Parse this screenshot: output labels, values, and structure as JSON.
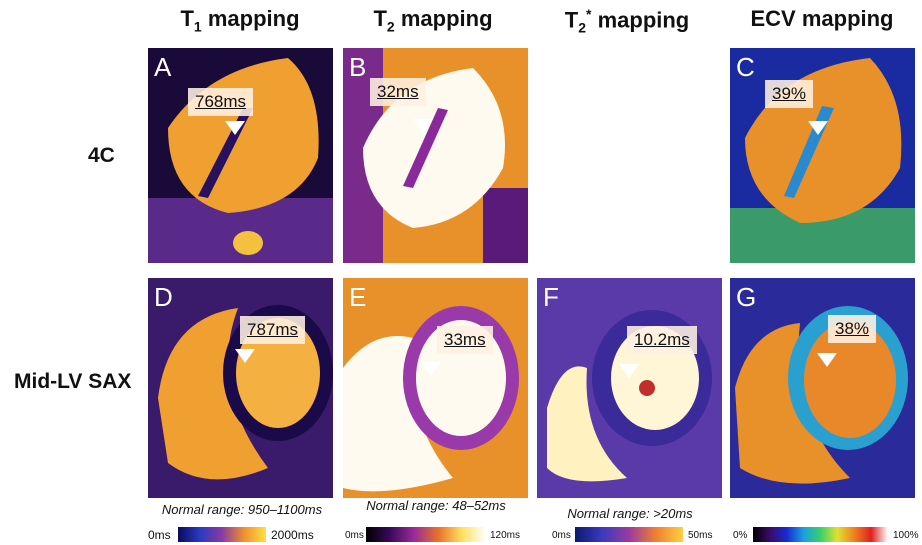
{
  "columns": [
    {
      "main": "T",
      "sub": "1",
      "tail": "mapping"
    },
    {
      "main": "T",
      "sub": "2",
      "tail": "mapping"
    },
    {
      "main": "T",
      "sub": "2",
      "sup": "*",
      "tail": "mapping"
    },
    {
      "main": "ECV mapping"
    }
  ],
  "rows": [
    "4C",
    "Mid-LV SAX"
  ],
  "panels": [
    {
      "letter": "A",
      "value": "768ms"
    },
    {
      "letter": "B",
      "value": "32ms"
    },
    {
      "letter": "C",
      "value": "39%"
    },
    {
      "letter": "D",
      "value": "787ms"
    },
    {
      "letter": "E",
      "value": "33ms"
    },
    {
      "letter": "F",
      "value": "10.2ms"
    },
    {
      "letter": "G",
      "value": "38%"
    }
  ],
  "normal_ranges": [
    "Normal range: 950–1100ms",
    "Normal range: 48–52ms",
    "Normal range: >20ms"
  ],
  "scales": [
    {
      "min": "0ms",
      "max": "2000ms"
    },
    {
      "min": "0ms",
      "max": "120ms"
    },
    {
      "min": "0ms",
      "max": "50ms"
    },
    {
      "min": "0%",
      "max": "100%"
    }
  ]
}
